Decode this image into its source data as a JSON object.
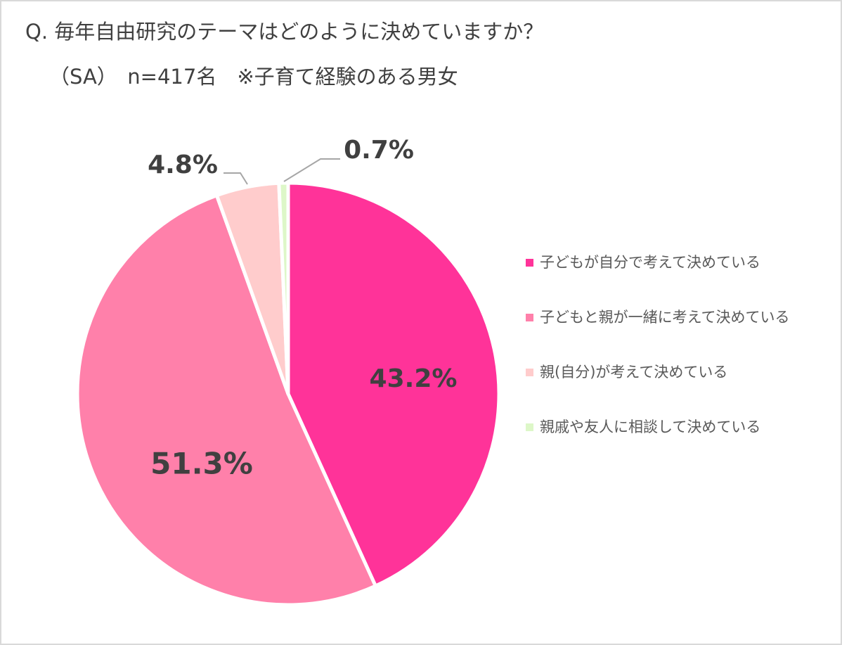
{
  "title": "Q. 毎年自由研究のテーマはどのように決めていますか？",
  "subtitle": "（SA）　n=417名　※子育て経験のある男女",
  "colors": {
    "slice_1": "#ff3399",
    "slice_2": "#ff80aa",
    "slice_3": "#ffcccc",
    "slice_4": "#ddf7c8",
    "leader_line": "#a6a6a6",
    "label_text": "#404040"
  },
  "chart_data": {
    "type": "pie",
    "title": "Q. 毎年自由研究のテーマはどのように決めていますか？",
    "start_angle": "12 o'clock, clockwise",
    "legend_position": "right",
    "slices": [
      {
        "label": "子どもが自分で考えて決めている",
        "value": 43.2,
        "display": "43.2%"
      },
      {
        "label": "子どもと親が一緒に考えて決めている",
        "value": 51.3,
        "display": "51.3%"
      },
      {
        "label": "親(自分)が考えて決めている",
        "value": 4.8,
        "display": "4.8%"
      },
      {
        "label": "親戚や友人に相談して決めている",
        "value": 0.7,
        "display": "0.7%"
      }
    ]
  }
}
